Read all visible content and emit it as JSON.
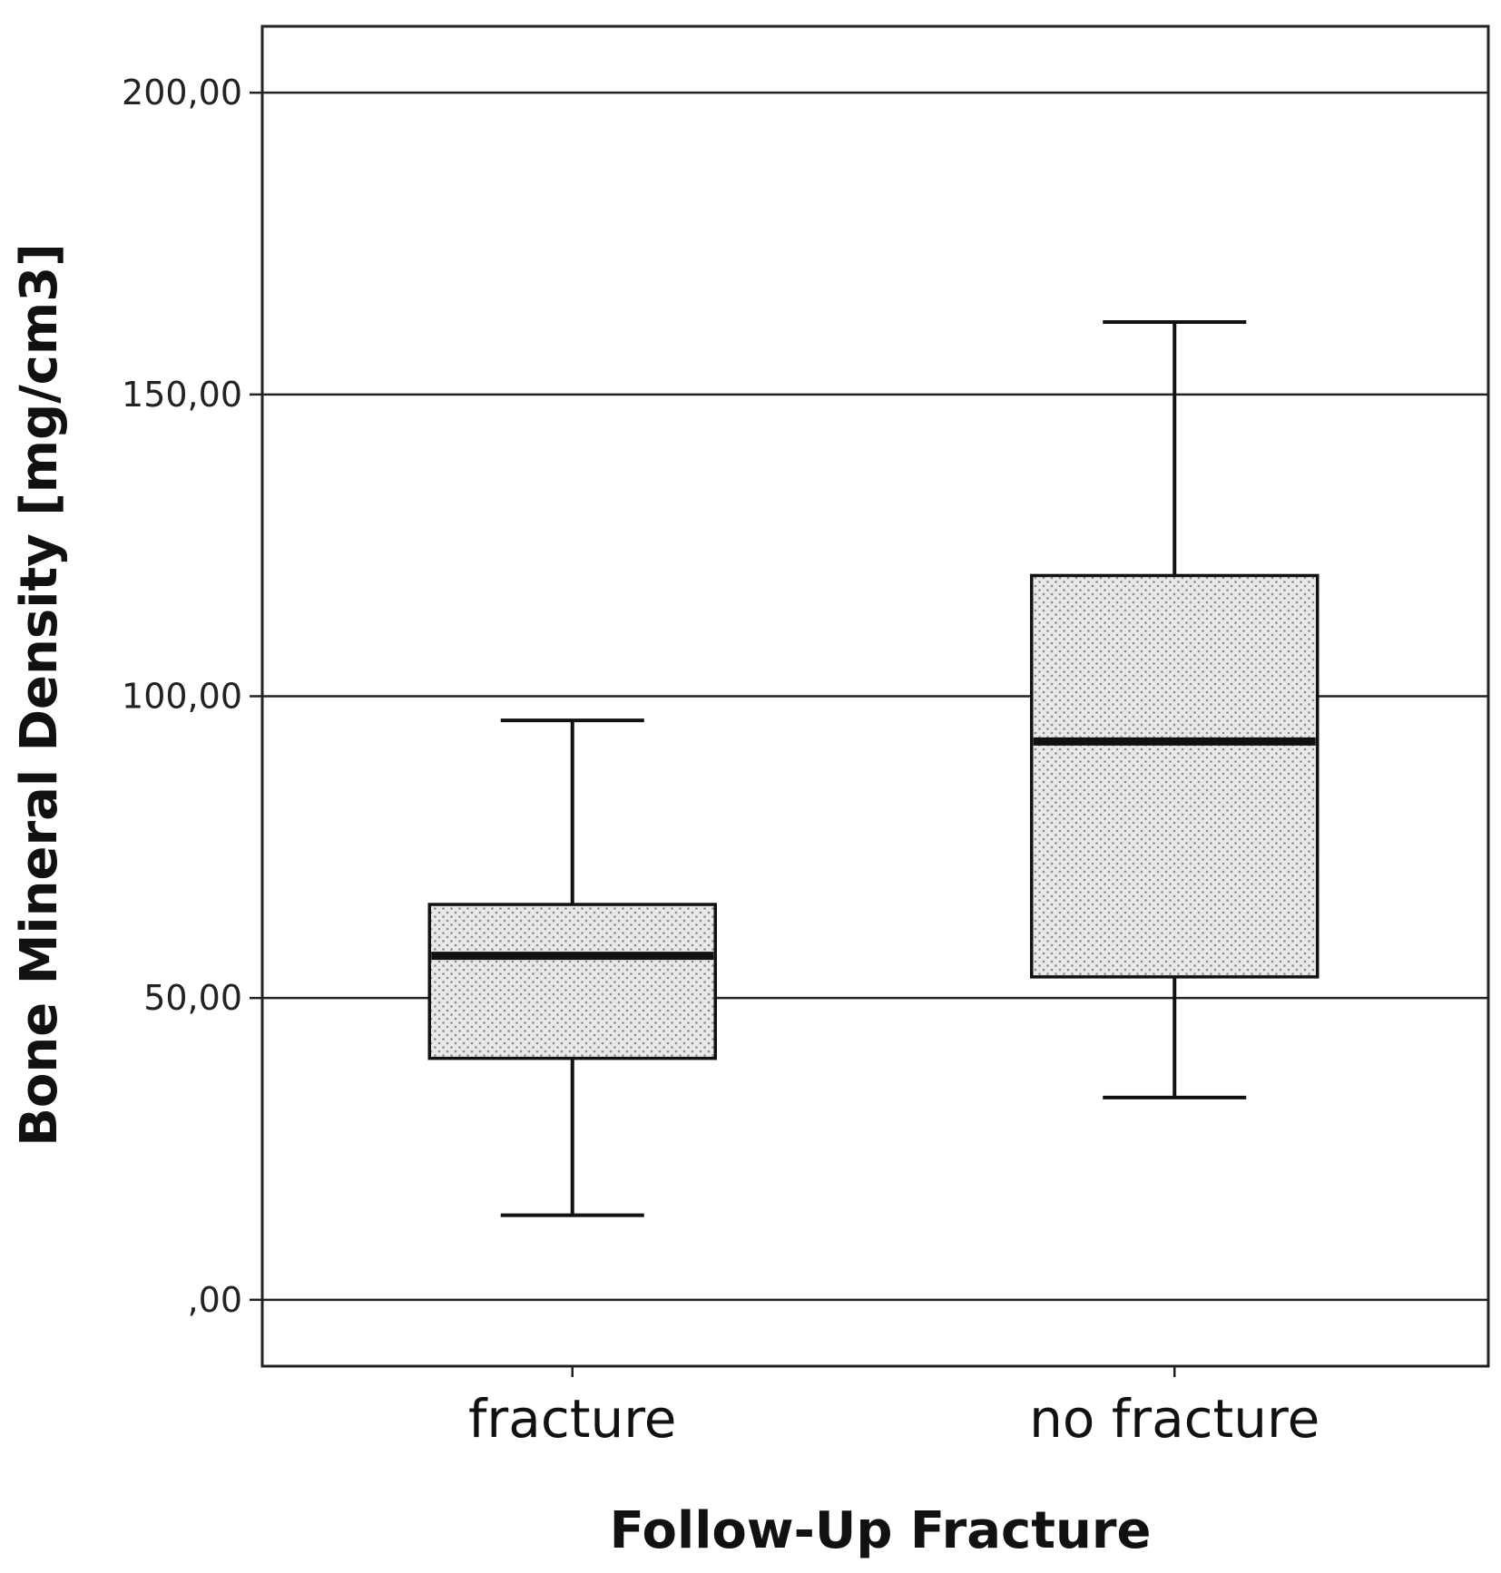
{
  "chart_data": {
    "type": "box",
    "title": "",
    "xlabel": "Follow-Up Fracture",
    "ylabel": "Bone Mineral Density [mg/cm3]",
    "ylim": [
      -11,
      211
    ],
    "yticks": [
      0,
      50,
      100,
      150,
      200
    ],
    "ytick_labels": [
      ",00",
      "50,00",
      "100,00",
      "150,00",
      "200,00"
    ],
    "grid": "horizontal",
    "categories": [
      "fracture",
      "no fracture"
    ],
    "boxes": [
      {
        "category": "fracture",
        "whisker_low": 14,
        "q1": 40,
        "median": 57,
        "q3": 65.5,
        "whisker_high": 96
      },
      {
        "category": "no fracture",
        "whisker_low": 33.5,
        "q1": 53.5,
        "median": 92.5,
        "q3": 120,
        "whisker_high": 162
      }
    ],
    "colors": {
      "box_fill": "#e8e8e8",
      "box_dots": "#8a8a8a",
      "line": "#111111",
      "grid": "#222222"
    }
  }
}
